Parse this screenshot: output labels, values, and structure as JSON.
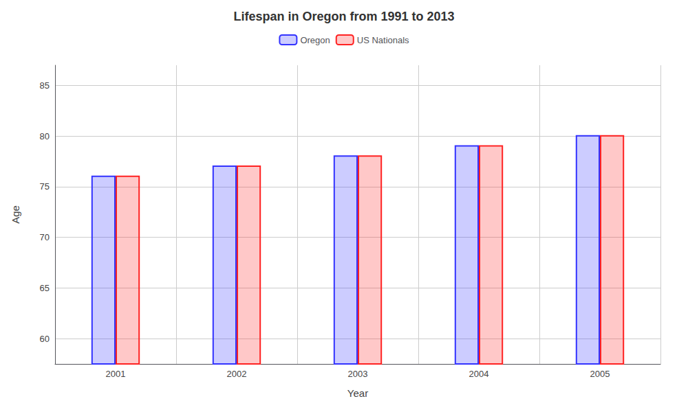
{
  "chart_data": {
    "type": "bar",
    "title": "Lifespan in Oregon from 1991 to 2013",
    "xlabel": "Year",
    "ylabel": "Age",
    "categories": [
      "2001",
      "2002",
      "2003",
      "2004",
      "2005"
    ],
    "series": [
      {
        "name": "Oregon",
        "color": "#3333ff",
        "values": [
          76.1,
          77.1,
          78.1,
          79.1,
          80.1
        ]
      },
      {
        "name": "US Nationals",
        "color": "#ff2222",
        "values": [
          76.1,
          77.1,
          78.1,
          79.1,
          80.1
        ]
      }
    ],
    "ylim": [
      57.5,
      87
    ],
    "yticks": [
      60,
      65,
      70,
      75,
      80,
      85
    ],
    "grid": true,
    "legend": "top"
  }
}
